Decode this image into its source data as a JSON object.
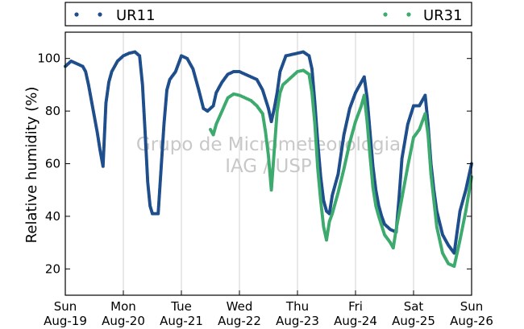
{
  "chart_data": {
    "type": "scatter",
    "ylabel": "Relative humidity (%)",
    "xlabel": "",
    "ylim": [
      10,
      110
    ],
    "xlim": [
      0,
      7
    ],
    "yticks": [
      20,
      40,
      60,
      80,
      100
    ],
    "grid": "vertical",
    "legend_position": "top",
    "x_ticks": [
      {
        "x": 0,
        "day": "Sun",
        "date": "Aug-19"
      },
      {
        "x": 1,
        "day": "Mon",
        "date": "Aug-20"
      },
      {
        "x": 2,
        "day": "Tue",
        "date": "Aug-21"
      },
      {
        "x": 3,
        "day": "Wed",
        "date": "Aug-22"
      },
      {
        "x": 4,
        "day": "Thu",
        "date": "Aug-23"
      },
      {
        "x": 5,
        "day": "Fri",
        "date": "Aug-24"
      },
      {
        "x": 6,
        "day": "Sat",
        "date": "Aug-25"
      },
      {
        "x": 7,
        "day": "Sun",
        "date": "Aug-26"
      }
    ],
    "watermark": [
      "Grupo de Micrometeorologia",
      "IAG / USP"
    ],
    "series": [
      {
        "name": "UR11",
        "color": "#1f4e8c",
        "points": [
          [
            0.0,
            97
          ],
          [
            0.1,
            99
          ],
          [
            0.2,
            98
          ],
          [
            0.3,
            97
          ],
          [
            0.35,
            95
          ],
          [
            0.4,
            90
          ],
          [
            0.45,
            84
          ],
          [
            0.5,
            78
          ],
          [
            0.55,
            72
          ],
          [
            0.6,
            65
          ],
          [
            0.65,
            59
          ],
          [
            0.7,
            83
          ],
          [
            0.75,
            91
          ],
          [
            0.8,
            95
          ],
          [
            0.9,
            99
          ],
          [
            1.0,
            101
          ],
          [
            1.1,
            102
          ],
          [
            1.2,
            102.5
          ],
          [
            1.28,
            101
          ],
          [
            1.33,
            90
          ],
          [
            1.38,
            70
          ],
          [
            1.42,
            53
          ],
          [
            1.46,
            44
          ],
          [
            1.5,
            41
          ],
          [
            1.6,
            41
          ],
          [
            1.7,
            75
          ],
          [
            1.75,
            88
          ],
          [
            1.8,
            92
          ],
          [
            1.9,
            95
          ],
          [
            2.0,
            101
          ],
          [
            2.1,
            100
          ],
          [
            2.2,
            96
          ],
          [
            2.3,
            88
          ],
          [
            2.38,
            81
          ],
          [
            2.45,
            80
          ],
          [
            2.55,
            82
          ],
          [
            2.6,
            87
          ],
          [
            2.7,
            91
          ],
          [
            2.8,
            94
          ],
          [
            2.9,
            95
          ],
          [
            3.0,
            95
          ],
          [
            3.1,
            94
          ],
          [
            3.2,
            93
          ],
          [
            3.3,
            92
          ],
          [
            3.4,
            88
          ],
          [
            3.5,
            81
          ],
          [
            3.55,
            76
          ],
          [
            3.6,
            81
          ],
          [
            3.65,
            87
          ],
          [
            3.7,
            95
          ],
          [
            3.8,
            101
          ],
          [
            3.9,
            101.5
          ],
          [
            4.0,
            102
          ],
          [
            4.1,
            102.5
          ],
          [
            4.2,
            101
          ],
          [
            4.25,
            96
          ],
          [
            4.3,
            83
          ],
          [
            4.35,
            68
          ],
          [
            4.4,
            55
          ],
          [
            4.45,
            46
          ],
          [
            4.5,
            42
          ],
          [
            4.55,
            41
          ],
          [
            4.6,
            48
          ],
          [
            4.7,
            56
          ],
          [
            4.8,
            71
          ],
          [
            4.9,
            81
          ],
          [
            5.0,
            87
          ],
          [
            5.1,
            91
          ],
          [
            5.15,
            93
          ],
          [
            5.2,
            85
          ],
          [
            5.25,
            72
          ],
          [
            5.3,
            59
          ],
          [
            5.35,
            50
          ],
          [
            5.4,
            44
          ],
          [
            5.45,
            40
          ],
          [
            5.5,
            37
          ],
          [
            5.6,
            35
          ],
          [
            5.7,
            34
          ],
          [
            5.75,
            47
          ],
          [
            5.8,
            62
          ],
          [
            5.9,
            75
          ],
          [
            6.0,
            82
          ],
          [
            6.1,
            82
          ],
          [
            6.2,
            86
          ],
          [
            6.25,
            75
          ],
          [
            6.3,
            60
          ],
          [
            6.35,
            50
          ],
          [
            6.4,
            42
          ],
          [
            6.5,
            33
          ],
          [
            6.6,
            29
          ],
          [
            6.7,
            26
          ],
          [
            6.75,
            34
          ],
          [
            6.8,
            42
          ],
          [
            6.9,
            50
          ],
          [
            7.0,
            60
          ]
        ]
      },
      {
        "name": "UR31",
        "color": "#3daa6e",
        "points": [
          [
            2.5,
            73
          ],
          [
            2.55,
            71
          ],
          [
            2.6,
            75
          ],
          [
            2.7,
            80
          ],
          [
            2.8,
            85
          ],
          [
            2.9,
            86.5
          ],
          [
            3.0,
            86
          ],
          [
            3.1,
            85
          ],
          [
            3.2,
            84
          ],
          [
            3.3,
            82
          ],
          [
            3.4,
            79
          ],
          [
            3.45,
            72
          ],
          [
            3.5,
            63
          ],
          [
            3.55,
            50
          ],
          [
            3.6,
            65
          ],
          [
            3.65,
            80
          ],
          [
            3.7,
            87
          ],
          [
            3.75,
            90
          ],
          [
            3.8,
            91
          ],
          [
            3.9,
            93
          ],
          [
            4.0,
            95
          ],
          [
            4.1,
            95.5
          ],
          [
            4.2,
            94
          ],
          [
            4.25,
            87
          ],
          [
            4.3,
            75
          ],
          [
            4.35,
            58
          ],
          [
            4.4,
            46
          ],
          [
            4.45,
            36
          ],
          [
            4.5,
            31
          ],
          [
            4.55,
            38
          ],
          [
            4.6,
            41
          ],
          [
            4.7,
            49
          ],
          [
            4.8,
            58
          ],
          [
            4.9,
            68
          ],
          [
            5.0,
            76
          ],
          [
            5.1,
            82
          ],
          [
            5.15,
            86
          ],
          [
            5.2,
            76
          ],
          [
            5.25,
            63
          ],
          [
            5.3,
            51
          ],
          [
            5.35,
            44
          ],
          [
            5.4,
            40
          ],
          [
            5.5,
            33
          ],
          [
            5.6,
            30
          ],
          [
            5.65,
            28
          ],
          [
            5.7,
            35
          ],
          [
            5.8,
            47
          ],
          [
            5.9,
            59
          ],
          [
            6.0,
            70
          ],
          [
            6.1,
            73
          ],
          [
            6.2,
            79
          ],
          [
            6.25,
            71
          ],
          [
            6.3,
            56
          ],
          [
            6.35,
            46
          ],
          [
            6.4,
            36
          ],
          [
            6.5,
            26
          ],
          [
            6.6,
            22
          ],
          [
            6.7,
            21
          ],
          [
            6.8,
            31
          ],
          [
            6.9,
            42
          ],
          [
            7.0,
            55
          ]
        ]
      }
    ]
  }
}
